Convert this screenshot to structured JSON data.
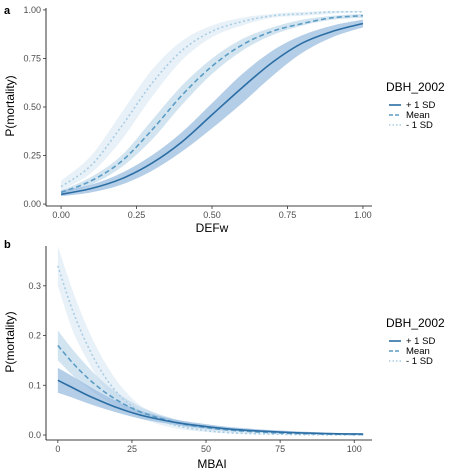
{
  "panels": [
    {
      "label": "a"
    },
    {
      "label": "b"
    }
  ],
  "colors": {
    "plus_1sd": "#2c6ea4",
    "mean": "#5b9cc4",
    "minus_1sd": "#a9cde4",
    "ribbon_plus": "#9bbde0",
    "ribbon_mean": "#bcd5ea",
    "ribbon_minus": "#d9e8f4"
  },
  "chart_data": [
    {
      "type": "line",
      "xlabel": "DEFw",
      "ylabel": "P(mortality)",
      "xlim": [
        -0.05,
        1.03
      ],
      "ylim": [
        -0.01,
        1.01
      ],
      "x_ticks": [
        0.0,
        0.25,
        0.5,
        0.75,
        1.0
      ],
      "x_tick_labels": [
        "0.00",
        "0.25",
        "0.50",
        "0.75",
        "1.00"
      ],
      "y_ticks": [
        0.0,
        0.25,
        0.5,
        0.75,
        1.0
      ],
      "y_tick_labels": [
        "0.00",
        "0.25",
        "0.50",
        "0.75",
        "1.00"
      ],
      "grid": false,
      "legend": {
        "title": "DBH_2002",
        "placement": "right"
      },
      "x": [
        0.0,
        0.1,
        0.2,
        0.3,
        0.4,
        0.5,
        0.6,
        0.7,
        0.8,
        0.9,
        1.0
      ],
      "series": [
        {
          "name": "+ 1 SD",
          "style": "solid",
          "values": [
            0.05,
            0.08,
            0.13,
            0.21,
            0.32,
            0.46,
            0.6,
            0.73,
            0.83,
            0.89,
            0.93
          ],
          "lower": [
            0.04,
            0.06,
            0.1,
            0.17,
            0.27,
            0.39,
            0.52,
            0.66,
            0.78,
            0.86,
            0.91
          ],
          "upper": [
            0.07,
            0.1,
            0.16,
            0.25,
            0.37,
            0.52,
            0.67,
            0.79,
            0.87,
            0.92,
            0.95
          ]
        },
        {
          "name": "Mean",
          "style": "dashed",
          "values": [
            0.06,
            0.12,
            0.22,
            0.38,
            0.56,
            0.71,
            0.82,
            0.89,
            0.93,
            0.96,
            0.97
          ],
          "lower": [
            0.05,
            0.1,
            0.19,
            0.33,
            0.51,
            0.67,
            0.79,
            0.87,
            0.92,
            0.95,
            0.96
          ],
          "upper": [
            0.07,
            0.14,
            0.25,
            0.43,
            0.61,
            0.75,
            0.85,
            0.91,
            0.95,
            0.97,
            0.98
          ]
        },
        {
          "name": "- 1 SD",
          "style": "dotted",
          "values": [
            0.09,
            0.2,
            0.4,
            0.62,
            0.79,
            0.89,
            0.94,
            0.97,
            0.98,
            0.99,
            0.99
          ],
          "lower": [
            0.07,
            0.16,
            0.33,
            0.55,
            0.74,
            0.86,
            0.92,
            0.96,
            0.97,
            0.98,
            0.99
          ],
          "upper": [
            0.12,
            0.25,
            0.47,
            0.69,
            0.84,
            0.92,
            0.96,
            0.98,
            0.99,
            0.995,
            0.995
          ]
        }
      ]
    },
    {
      "type": "line",
      "xlabel": "MBAI",
      "ylabel": "P(mortality)",
      "xlim": [
        -4,
        106
      ],
      "ylim": [
        -0.01,
        0.38
      ],
      "x_ticks": [
        0,
        25,
        50,
        75,
        100
      ],
      "x_tick_labels": [
        "0",
        "25",
        "50",
        "75",
        "100"
      ],
      "y_ticks": [
        0.0,
        0.1,
        0.2,
        0.3
      ],
      "y_tick_labels": [
        "0.0",
        "0.1",
        "0.2",
        "0.3"
      ],
      "grid": false,
      "legend": {
        "title": "DBH_2002",
        "placement": "right"
      },
      "x": [
        0,
        5,
        10,
        15,
        20,
        25,
        30,
        40,
        50,
        60,
        75,
        90,
        103
      ],
      "series": [
        {
          "name": "+ 1 SD",
          "style": "solid",
          "values": [
            0.11,
            0.095,
            0.08,
            0.067,
            0.055,
            0.045,
            0.037,
            0.025,
            0.017,
            0.011,
            0.006,
            0.003,
            0.002
          ],
          "lower": [
            0.085,
            0.075,
            0.064,
            0.054,
            0.045,
            0.037,
            0.03,
            0.02,
            0.013,
            0.008,
            0.004,
            0.002,
            0.001
          ],
          "upper": [
            0.135,
            0.118,
            0.1,
            0.083,
            0.068,
            0.055,
            0.045,
            0.031,
            0.022,
            0.015,
            0.009,
            0.005,
            0.003
          ]
        },
        {
          "name": "Mean",
          "style": "dashed",
          "values": [
            0.18,
            0.145,
            0.115,
            0.09,
            0.07,
            0.054,
            0.042,
            0.025,
            0.015,
            0.009,
            0.004,
            0.002,
            0.001
          ],
          "lower": [
            0.15,
            0.12,
            0.095,
            0.074,
            0.057,
            0.044,
            0.034,
            0.02,
            0.011,
            0.006,
            0.003,
            0.001,
            0.0005
          ],
          "upper": [
            0.21,
            0.172,
            0.138,
            0.108,
            0.085,
            0.066,
            0.051,
            0.031,
            0.019,
            0.012,
            0.006,
            0.003,
            0.0015
          ]
        },
        {
          "name": "- 1 SD",
          "style": "dotted",
          "values": [
            0.34,
            0.25,
            0.18,
            0.125,
            0.085,
            0.058,
            0.04,
            0.019,
            0.009,
            0.004,
            0.0015,
            0.0005,
            0.0002
          ],
          "lower": [
            0.3,
            0.21,
            0.15,
            0.1,
            0.066,
            0.044,
            0.029,
            0.013,
            0.006,
            0.0025,
            0.0008,
            0.0003,
            0.0001
          ],
          "upper": [
            0.38,
            0.29,
            0.215,
            0.155,
            0.108,
            0.074,
            0.052,
            0.026,
            0.013,
            0.006,
            0.0025,
            0.001,
            0.0004
          ]
        }
      ]
    }
  ]
}
